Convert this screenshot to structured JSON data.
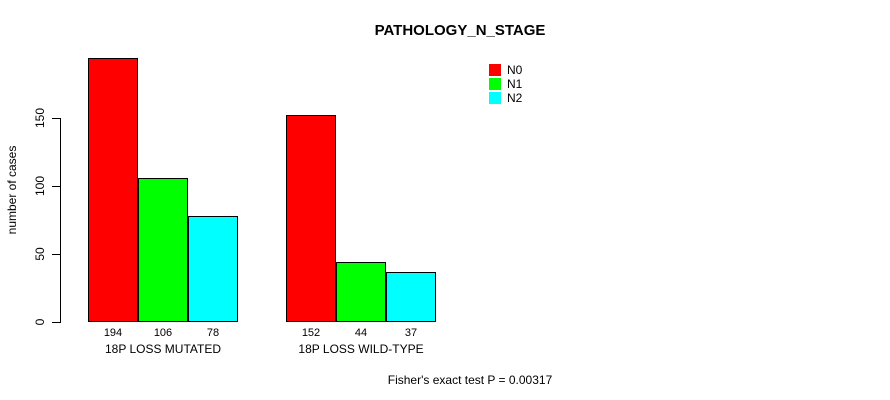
{
  "chart_data": {
    "type": "bar",
    "title": "PATHOLOGY_N_STAGE",
    "ylabel": "number of cases",
    "xlabel": "",
    "yticks": [
      0,
      50,
      100,
      150
    ],
    "ylim": [
      0,
      150
    ],
    "grid": false,
    "legend_position": "top-right",
    "categories": [
      "18P LOSS MUTATED",
      "18P LOSS WILD-TYPE"
    ],
    "series": [
      {
        "name": "N0",
        "color": "#ff0000",
        "values": [
          194,
          152
        ]
      },
      {
        "name": "N1",
        "color": "#00ff00",
        "values": [
          106,
          44
        ]
      },
      {
        "name": "N2",
        "color": "#00ffff",
        "values": [
          78,
          37
        ]
      }
    ],
    "bar_value_labels": [
      [
        194,
        106,
        78
      ],
      [
        152,
        44,
        37
      ]
    ],
    "annotation": "Fisher's exact test P = 0.00317"
  }
}
